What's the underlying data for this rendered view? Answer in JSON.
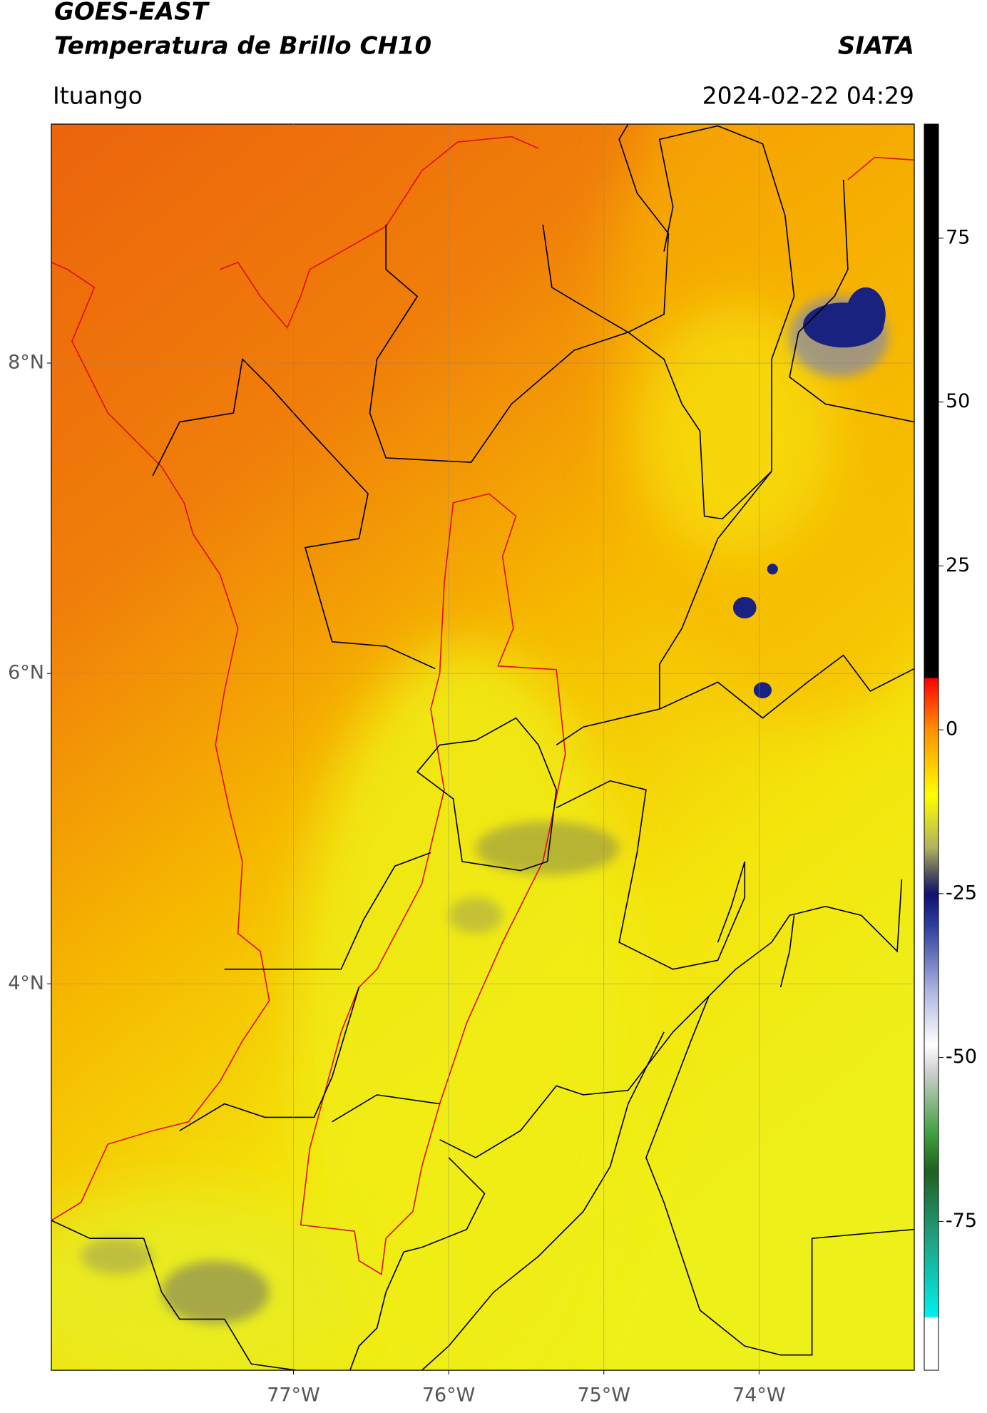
{
  "header": {
    "title": "GOES-EAST",
    "subtitle": "Temperatura de Brillo CH10",
    "agency": "SIATA",
    "location": "Ituango",
    "datetime": "2024-02-22 04:29"
  },
  "map": {
    "xlim": [
      -78.56,
      -73.0
    ],
    "ylim": [
      1.51,
      9.54
    ],
    "xticks": [
      {
        "value": -77,
        "label": "77°W"
      },
      {
        "value": -76,
        "label": "76°W"
      },
      {
        "value": -75,
        "label": "75°W"
      },
      {
        "value": -74,
        "label": "74°W"
      }
    ],
    "yticks": [
      {
        "value": 8,
        "label": "8°N"
      },
      {
        "value": 6,
        "label": "6°N"
      },
      {
        "value": 4,
        "label": "4°N"
      }
    ],
    "grid": true
  },
  "colorbar": {
    "lim": [
      -97.7,
      92.4
    ],
    "ticks": [
      75,
      50,
      25,
      0,
      -25,
      -50,
      -75
    ]
  }
}
